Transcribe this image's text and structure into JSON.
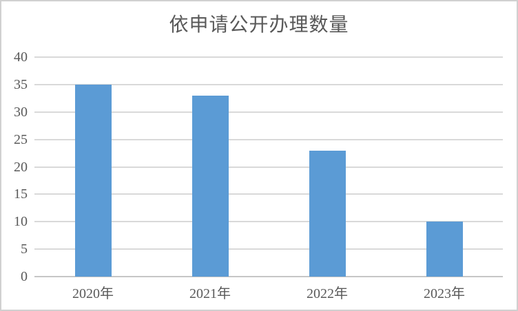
{
  "title": "依申请公开办理数量",
  "colors": {
    "bar": "#5B9BD5",
    "gridline": "#D9D9D9",
    "axis_line": "#C6C6C6",
    "text": "#595959",
    "frame_border": "#D0D0D0",
    "background": "#FFFFFF"
  },
  "chart_data": {
    "type": "bar",
    "title": "依申请公开办理数量",
    "categories": [
      "2020年",
      "2021年",
      "2022年",
      "2023年"
    ],
    "values": [
      35,
      33,
      23,
      10
    ],
    "series": [
      {
        "name": "依申请公开办理数量",
        "values": [
          35,
          33,
          23,
          10
        ]
      }
    ],
    "xlabel": "",
    "ylabel": "",
    "ylim": [
      0,
      40
    ],
    "yticks": [
      0,
      5,
      10,
      15,
      20,
      25,
      30,
      35,
      40
    ],
    "grid": true,
    "legend": false,
    "data_labels": false
  }
}
